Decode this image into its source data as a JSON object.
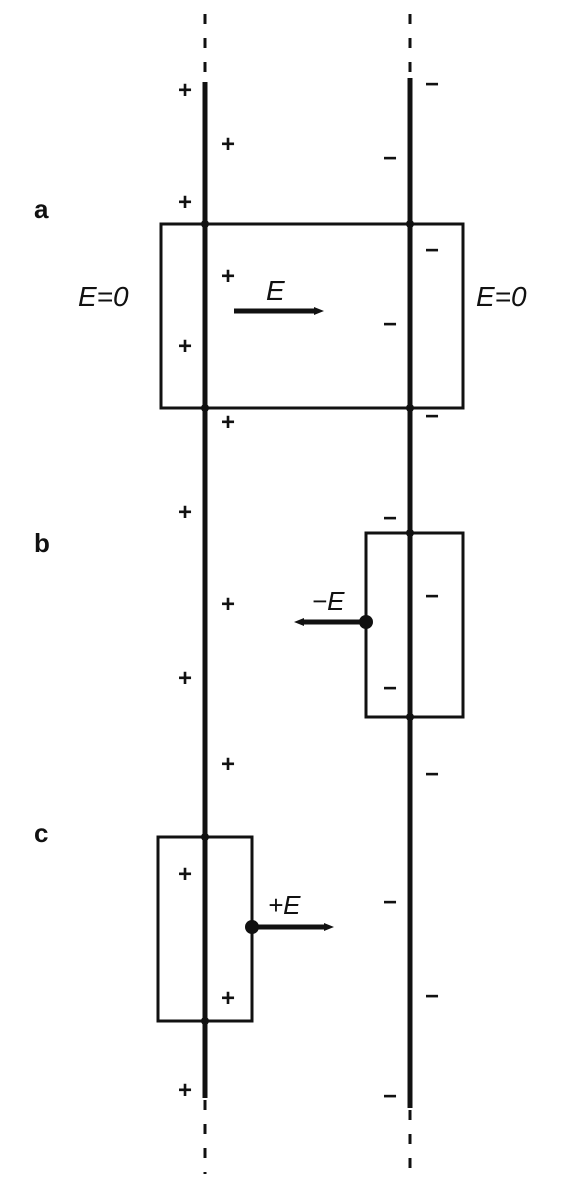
{
  "labels": {
    "part_a": "a",
    "part_b": "b",
    "part_c": "c",
    "field_outside_left": "E=0",
    "field_outside_right": "E=0",
    "field_inside": "E",
    "field_b": "−E",
    "field_c": "+E"
  },
  "charges": {
    "positive": "+",
    "negative": "−"
  },
  "colors": {
    "ink": "#111111",
    "background": "#ffffff"
  }
}
